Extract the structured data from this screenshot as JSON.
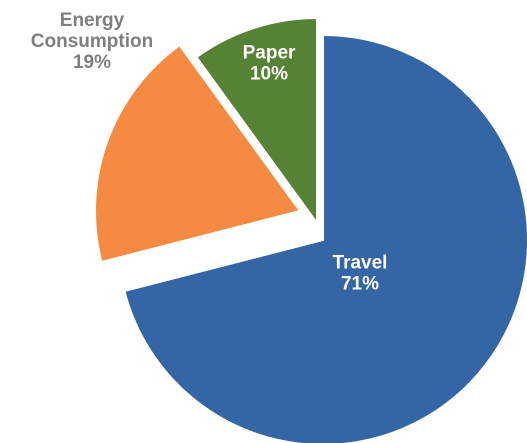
{
  "chart_data": {
    "type": "pie",
    "title": "",
    "slices": [
      {
        "label": "Travel",
        "value": 71,
        "value_label": "71%",
        "color": "#3465a4",
        "label_color": "#ffffff",
        "exploded": false
      },
      {
        "label": "Energy Consumption",
        "value": 19,
        "value_label": "19%",
        "color": "#f58a42",
        "label_color": "#7f7f7f",
        "exploded": true,
        "label_position": "outside"
      },
      {
        "label": "Paper",
        "value": 10,
        "value_label": "10%",
        "color": "#568235",
        "label_color": "#ffffff",
        "exploded": true
      }
    ]
  }
}
